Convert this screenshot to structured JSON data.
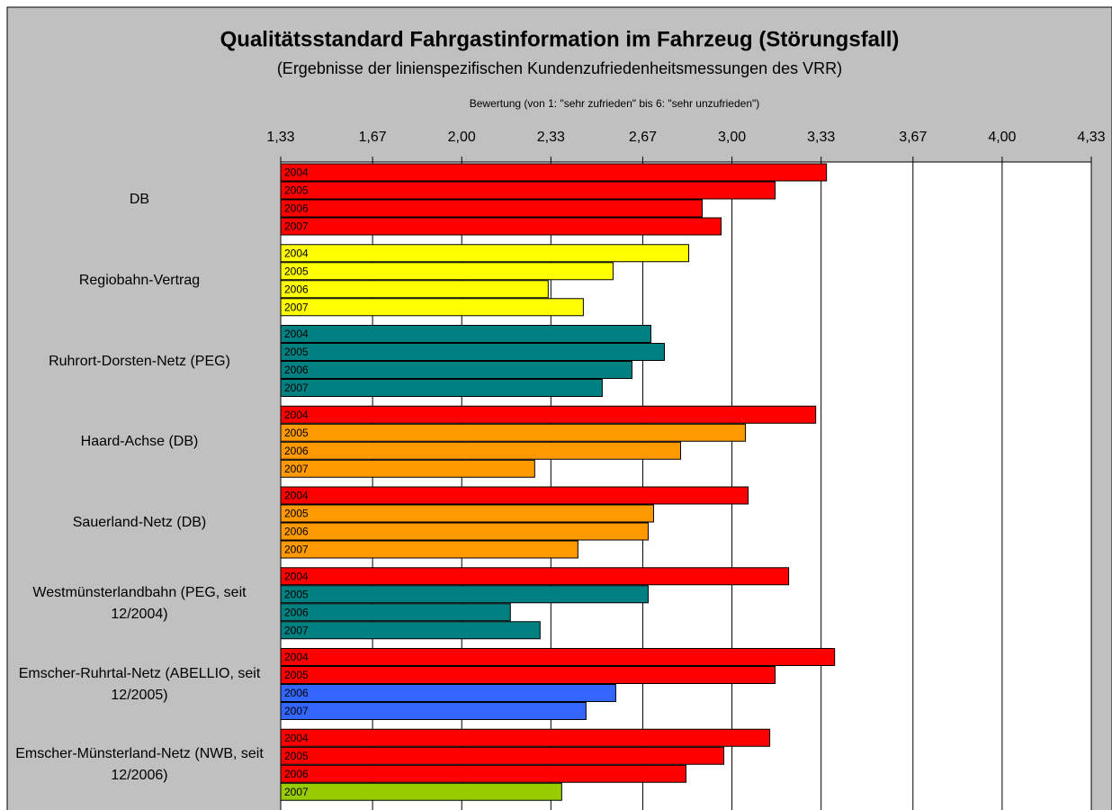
{
  "chart_data": {
    "type": "bar",
    "orientation": "horizontal",
    "title": "Qualitätsstandard Fahrgastinformation im Fahrzeug (Störungsfall)",
    "subtitle": "(Ergebnisse der linienspezifischen Kundenzufriedenheitsmessungen des VRR)",
    "x_label": "Bewertung (von 1: \"sehr zufrieden\" bis 6: \"sehr unzufrieden\")",
    "categories": [
      "DB",
      "Regiobahn-Vertrag",
      "Ruhrort-Dorsten-Netz (PEG)",
      "Haard-Achse (DB)",
      "Sauerland-Netz (DB)",
      "Westmünsterlandbahn (PEG, seit 12/2004)",
      "Emscher-Ruhrtal-Netz (ABELLIO, seit 12/2005)",
      "Emscher-Münsterland-Netz (NWB, seit 12/2006)"
    ],
    "series": [
      {
        "name": "2004",
        "colors": [
          "#ff0000",
          "#ffff00",
          "#008080",
          "#ff0000",
          "#ff0000",
          "#ff0000",
          "#ff0000",
          "#ff0000"
        ],
        "values": [
          3.35,
          2.84,
          2.7,
          3.31,
          3.06,
          3.21,
          3.38,
          3.14
        ]
      },
      {
        "name": "2005",
        "colors": [
          "#ff0000",
          "#ffff00",
          "#008080",
          "#ff9900",
          "#ff9900",
          "#008080",
          "#ff0000",
          "#ff0000"
        ],
        "values": [
          3.16,
          2.56,
          2.75,
          3.05,
          2.71,
          2.69,
          3.16,
          2.97
        ]
      },
      {
        "name": "2006",
        "colors": [
          "#ff0000",
          "#ffff00",
          "#008080",
          "#ff9900",
          "#ff9900",
          "#008080",
          "#3366ff",
          "#ff0000"
        ],
        "values": [
          2.89,
          2.32,
          2.63,
          2.81,
          2.69,
          2.18,
          2.57,
          2.83
        ]
      },
      {
        "name": "2007",
        "colors": [
          "#ff0000",
          "#ffff00",
          "#008080",
          "#ff9900",
          "#ff9900",
          "#008080",
          "#3366ff",
          "#99cc00"
        ],
        "values": [
          2.96,
          2.45,
          2.52,
          2.27,
          2.43,
          2.29,
          2.46,
          2.37
        ]
      }
    ],
    "xlim": [
      1.33,
      4.33
    ],
    "xticks": [
      {
        "value": 1.33,
        "label": "1,33"
      },
      {
        "value": 1.67,
        "label": "1,67"
      },
      {
        "value": 2.0,
        "label": "2,00"
      },
      {
        "value": 2.33,
        "label": "2,33"
      },
      {
        "value": 2.67,
        "label": "2,67"
      },
      {
        "value": 3.0,
        "label": "3,00"
      },
      {
        "value": 3.33,
        "label": "3,33"
      },
      {
        "value": 3.67,
        "label": "3,67"
      },
      {
        "value": 4.0,
        "label": "4,00"
      },
      {
        "value": 4.33,
        "label": "4,33"
      }
    ],
    "grid": true
  }
}
